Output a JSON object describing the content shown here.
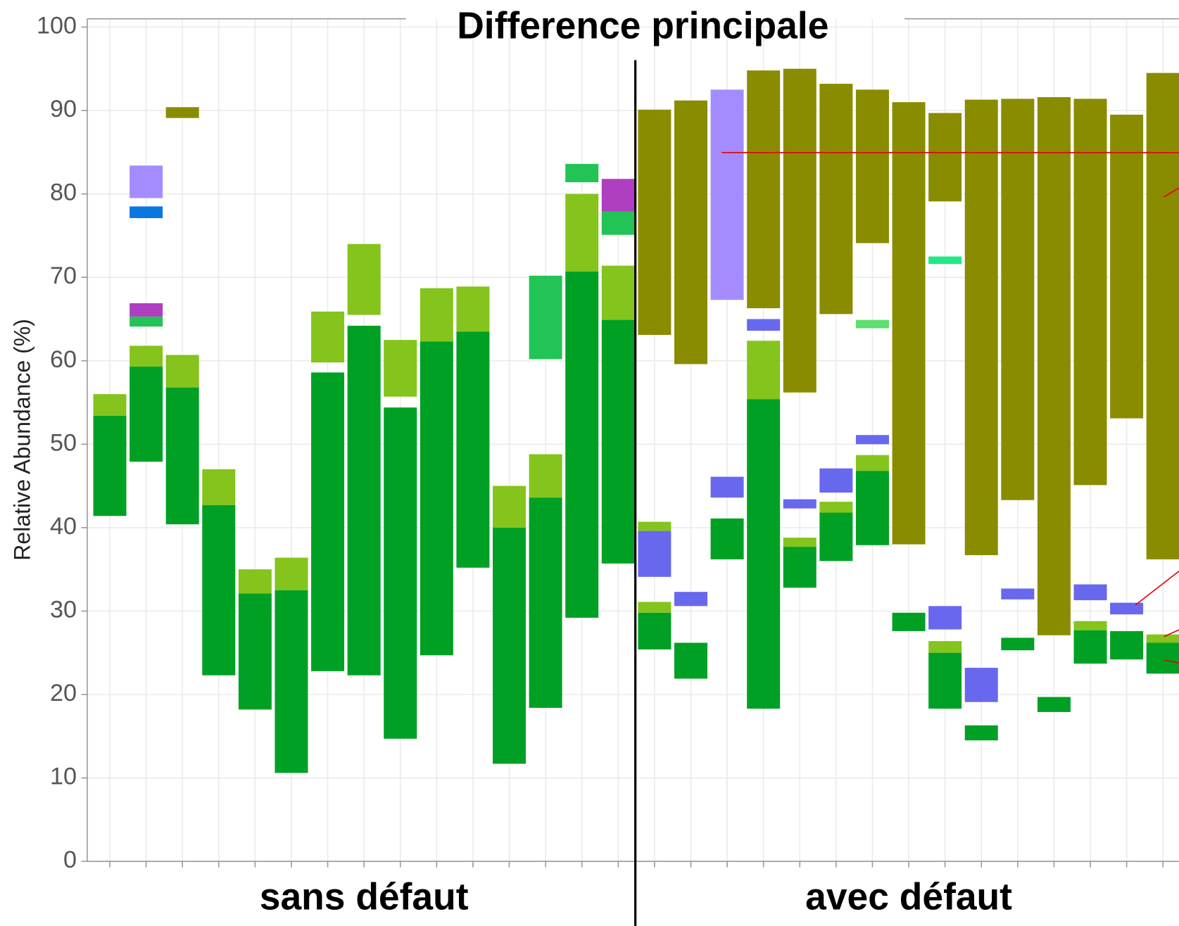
{
  "chart_data": {
    "type": "floating-bar",
    "title": "Difference principale",
    "ylabel": "Relative Abundance (%)",
    "ylim": [
      0,
      100
    ],
    "yticks": [
      0,
      10,
      20,
      30,
      40,
      50,
      60,
      70,
      80,
      90,
      100
    ],
    "grid": true,
    "groups": [
      {
        "label": "sans défaut",
        "columns": [
          {
            "segments": [
              {
                "low": 53.4,
                "high": 56.0,
                "color": "#84c41c"
              },
              {
                "low": 41.4,
                "high": 53.4,
                "color": "#00a024"
              }
            ]
          },
          {
            "segments": [
              {
                "low": 47.9,
                "high": 59.3,
                "color": "#00a024"
              },
              {
                "low": 59.3,
                "high": 61.8,
                "color": "#84c41c"
              },
              {
                "low": 64.1,
                "high": 65.3,
                "color": "#22c455"
              },
              {
                "low": 65.3,
                "high": 66.9,
                "color": "#b03ec0"
              },
              {
                "low": 77.1,
                "high": 78.5,
                "color": "#0878e0"
              },
              {
                "low": 79.5,
                "high": 83.4,
                "color": "#a48cff"
              }
            ]
          },
          {
            "segments": [
              {
                "low": 89.1,
                "high": 90.4,
                "color": "#8a8c00"
              },
              {
                "low": 56.8,
                "high": 60.7,
                "color": "#84c41c"
              },
              {
                "low": 40.4,
                "high": 56.8,
                "color": "#00a024"
              }
            ]
          },
          {
            "segments": [
              {
                "low": 42.7,
                "high": 47.0,
                "color": "#84c41c"
              },
              {
                "low": 22.3,
                "high": 42.7,
                "color": "#00a024"
              }
            ]
          },
          {
            "segments": [
              {
                "low": 32.1,
                "high": 35.0,
                "color": "#84c41c"
              },
              {
                "low": 18.2,
                "high": 32.1,
                "color": "#00a024"
              }
            ]
          },
          {
            "segments": [
              {
                "low": 32.5,
                "high": 36.4,
                "color": "#84c41c"
              },
              {
                "low": 10.6,
                "high": 32.5,
                "color": "#00a024"
              }
            ]
          },
          {
            "segments": [
              {
                "low": 59.8,
                "high": 65.9,
                "color": "#84c41c"
              },
              {
                "low": 22.8,
                "high": 58.6,
                "color": "#00a024"
              }
            ]
          },
          {
            "segments": [
              {
                "low": 65.5,
                "high": 74.0,
                "color": "#84c41c"
              },
              {
                "low": 22.3,
                "high": 64.2,
                "color": "#00a024"
              }
            ]
          },
          {
            "segments": [
              {
                "low": 55.7,
                "high": 62.5,
                "color": "#84c41c"
              },
              {
                "low": 14.7,
                "high": 54.4,
                "color": "#00a024"
              }
            ]
          },
          {
            "segments": [
              {
                "low": 62.3,
                "high": 68.7,
                "color": "#84c41c"
              },
              {
                "low": 24.7,
                "high": 62.3,
                "color": "#00a024"
              }
            ]
          },
          {
            "segments": [
              {
                "low": 63.5,
                "high": 68.9,
                "color": "#84c41c"
              },
              {
                "low": 35.2,
                "high": 63.5,
                "color": "#00a024"
              }
            ]
          },
          {
            "segments": [
              {
                "low": 40.0,
                "high": 45.0,
                "color": "#84c41c"
              },
              {
                "low": 11.7,
                "high": 40.0,
                "color": "#00a024"
              }
            ]
          },
          {
            "segments": [
              {
                "low": 43.6,
                "high": 48.8,
                "color": "#84c41c"
              },
              {
                "low": 18.4,
                "high": 43.6,
                "color": "#00a024"
              },
              {
                "low": 60.2,
                "high": 70.2,
                "color": "#22c455"
              }
            ]
          },
          {
            "segments": [
              {
                "low": 81.4,
                "high": 83.6,
                "color": "#22c455"
              },
              {
                "low": 70.7,
                "high": 80.0,
                "color": "#84c41c"
              },
              {
                "low": 29.2,
                "high": 70.7,
                "color": "#00a024"
              }
            ]
          },
          {
            "segments": [
              {
                "low": 77.9,
                "high": 81.8,
                "color": "#b03ec0"
              },
              {
                "low": 75.1,
                "high": 77.9,
                "color": "#22c455"
              },
              {
                "low": 64.9,
                "high": 71.4,
                "color": "#84c41c"
              },
              {
                "low": 35.7,
                "high": 64.9,
                "color": "#00a024"
              }
            ]
          }
        ]
      },
      {
        "label": "avec défaut",
        "columns": [
          {
            "segments": [
              {
                "low": 63.1,
                "high": 90.1,
                "color": "#8a8c00"
              },
              {
                "low": 39.6,
                "high": 40.7,
                "color": "#84c41c"
              },
              {
                "low": 34.1,
                "high": 39.6,
                "color": "#6868ee"
              },
              {
                "low": 29.8,
                "high": 31.1,
                "color": "#84c41c"
              },
              {
                "low": 25.4,
                "high": 29.8,
                "color": "#00a024"
              }
            ]
          },
          {
            "segments": [
              {
                "low": 59.6,
                "high": 91.2,
                "color": "#8a8c00"
              },
              {
                "low": 30.6,
                "high": 32.3,
                "color": "#6868ee"
              },
              {
                "low": 21.9,
                "high": 26.2,
                "color": "#00a024"
              }
            ]
          },
          {
            "segments": [
              {
                "low": 67.3,
                "high": 92.5,
                "color": "#a48cff"
              },
              {
                "low": 43.6,
                "high": 46.1,
                "color": "#6868ee"
              },
              {
                "low": 36.2,
                "high": 41.1,
                "color": "#00a024"
              }
            ]
          },
          {
            "segments": [
              {
                "low": 66.3,
                "high": 94.8,
                "color": "#8a8c00"
              },
              {
                "low": 63.6,
                "high": 65.0,
                "color": "#6868ee"
              },
              {
                "low": 55.4,
                "high": 62.4,
                "color": "#84c41c"
              },
              {
                "low": 18.3,
                "high": 55.4,
                "color": "#00a024"
              }
            ]
          },
          {
            "segments": [
              {
                "low": 56.2,
                "high": 95.0,
                "color": "#8a8c00"
              },
              {
                "low": 42.3,
                "high": 43.4,
                "color": "#6868ee"
              },
              {
                "low": 37.7,
                "high": 38.8,
                "color": "#84c41c"
              },
              {
                "low": 32.8,
                "high": 37.7,
                "color": "#00a024"
              }
            ]
          },
          {
            "segments": [
              {
                "low": 65.6,
                "high": 93.2,
                "color": "#8a8c00"
              },
              {
                "low": 44.2,
                "high": 47.1,
                "color": "#6868ee"
              },
              {
                "low": 41.8,
                "high": 43.1,
                "color": "#84c41c"
              },
              {
                "low": 36.0,
                "high": 41.8,
                "color": "#00a024"
              }
            ]
          },
          {
            "segments": [
              {
                "low": 74.1,
                "high": 92.5,
                "color": "#8a8c00"
              },
              {
                "low": 63.9,
                "high": 64.9,
                "color": "#5ee070"
              },
              {
                "low": 50.0,
                "high": 51.1,
                "color": "#6868ee"
              },
              {
                "low": 46.8,
                "high": 48.7,
                "color": "#84c41c"
              },
              {
                "low": 37.9,
                "high": 46.8,
                "color": "#00a024"
              }
            ]
          },
          {
            "segments": [
              {
                "low": 38.0,
                "high": 91.0,
                "color": "#8a8c00"
              },
              {
                "low": 27.6,
                "high": 29.8,
                "color": "#00a024"
              }
            ]
          },
          {
            "segments": [
              {
                "low": 79.1,
                "high": 89.7,
                "color": "#8a8c00"
              },
              {
                "low": 71.6,
                "high": 72.5,
                "color": "#22e888"
              },
              {
                "low": 27.8,
                "high": 30.6,
                "color": "#6868ee"
              },
              {
                "low": 25.0,
                "high": 26.4,
                "color": "#84c41c"
              },
              {
                "low": 18.3,
                "high": 25.0,
                "color": "#00a024"
              }
            ]
          },
          {
            "segments": [
              {
                "low": 36.7,
                "high": 91.3,
                "color": "#8a8c00"
              },
              {
                "low": 19.1,
                "high": 23.2,
                "color": "#6868ee"
              },
              {
                "low": 14.5,
                "high": 16.3,
                "color": "#00a024"
              }
            ]
          },
          {
            "segments": [
              {
                "low": 43.3,
                "high": 91.4,
                "color": "#8a8c00"
              },
              {
                "low": 31.4,
                "high": 32.7,
                "color": "#6868ee"
              },
              {
                "low": 25.3,
                "high": 26.8,
                "color": "#00a024"
              }
            ]
          },
          {
            "segments": [
              {
                "low": 27.1,
                "high": 91.6,
                "color": "#8a8c00"
              },
              {
                "low": 17.9,
                "high": 19.7,
                "color": "#00a024"
              }
            ]
          },
          {
            "segments": [
              {
                "low": 45.1,
                "high": 91.4,
                "color": "#8a8c00"
              },
              {
                "low": 31.3,
                "high": 33.2,
                "color": "#6868ee"
              },
              {
                "low": 27.7,
                "high": 28.8,
                "color": "#84c41c"
              },
              {
                "low": 23.7,
                "high": 27.7,
                "color": "#00a024"
              }
            ]
          },
          {
            "segments": [
              {
                "low": 53.1,
                "high": 89.5,
                "color": "#8a8c00"
              },
              {
                "low": 29.6,
                "high": 31.0,
                "color": "#6868ee"
              },
              {
                "low": 24.2,
                "high": 27.6,
                "color": "#00a024"
              }
            ]
          },
          {
            "segments": [
              {
                "low": 36.2,
                "high": 94.5,
                "color": "#8a8c00"
              },
              {
                "low": 26.2,
                "high": 27.2,
                "color": "#84c41c"
              },
              {
                "low": 22.5,
                "high": 26.2,
                "color": "#00a024"
              }
            ]
          }
        ]
      }
    ]
  }
}
